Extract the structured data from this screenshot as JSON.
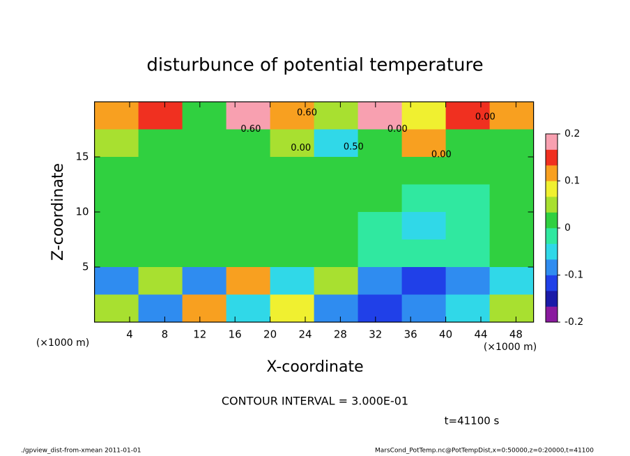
{
  "chart_data": {
    "type": "heatmap",
    "title": "disturbunce of potential temperature",
    "xlabel": "X-coordinate",
    "ylabel": "Z-coordinate",
    "x_unit": "(×1000 m)",
    "y_unit": "(×1000 m)",
    "xlim": [
      0,
      50
    ],
    "ylim": [
      0,
      20
    ],
    "xticks": [
      4,
      8,
      12,
      16,
      20,
      24,
      28,
      32,
      36,
      40,
      44,
      48
    ],
    "yticks": [
      5,
      10,
      15
    ],
    "zlim": [
      -0.2,
      0.2
    ],
    "zticks": [
      0.2,
      0.1,
      0,
      -0.1,
      -0.2
    ],
    "colors": [
      "#8a1a9e",
      "#1a1aa8",
      "#2040e8",
      "#2f8cf0",
      "#30d8e8",
      "#30e8a0",
      "#30d040",
      "#a8e030",
      "#f0f030",
      "#f8a020",
      "#f03020",
      "#f8a0b0"
    ],
    "z": [
      [
        0.1,
        0.15,
        0,
        0.18,
        0.1,
        0.05,
        0.2,
        0.08,
        0.15,
        0.1
      ],
      [
        0.05,
        0,
        0.03,
        0.02,
        0.05,
        -0.05,
        0.03,
        0.1,
        0,
        0.03
      ],
      [
        0,
        0,
        0,
        0,
        0,
        0,
        0,
        0,
        0,
        0.01
      ],
      [
        0.02,
        0.03,
        0,
        0,
        0,
        0,
        0,
        -0.03,
        -0.02,
        0.01
      ],
      [
        0.01,
        0,
        0,
        0,
        0,
        0,
        -0.02,
        -0.04,
        -0.03,
        0
      ],
      [
        0.02,
        0,
        0,
        0,
        0,
        0,
        -0.02,
        -0.03,
        -0.02,
        0
      ],
      [
        -0.08,
        0.05,
        -0.1,
        0.1,
        -0.05,
        0.05,
        -0.1,
        -0.12,
        -0.08,
        -0.05
      ],
      [
        0.05,
        -0.1,
        0.1,
        -0.05,
        0.08,
        -0.1,
        -0.12,
        -0.08,
        -0.05,
        0.05
      ]
    ],
    "annotations": [
      {
        "text": "0.60",
        "x": 24.2,
        "y": 19
      },
      {
        "text": "0.60",
        "x": 17.8,
        "y": 17.5
      },
      {
        "text": "0.00",
        "x": 34.5,
        "y": 17.5
      },
      {
        "text": "0.00",
        "x": 23.5,
        "y": 15.8
      },
      {
        "text": "0.50",
        "x": 29.5,
        "y": 15.9
      },
      {
        "text": "0.00",
        "x": 39.5,
        "y": 15.2
      },
      {
        "text": "0.00",
        "x": 44.5,
        "y": 18.6
      }
    ],
    "contour_interval": "CONTOUR INTERVAL = 3.000E-01",
    "time": "t=41100 s",
    "footer_left": "./gpview_dist-from-xmean  2011-01-01",
    "footer_right": "MarsCond_PotTemp.nc@PotTempDist,x=0:50000,z=0:20000,t=41100"
  }
}
